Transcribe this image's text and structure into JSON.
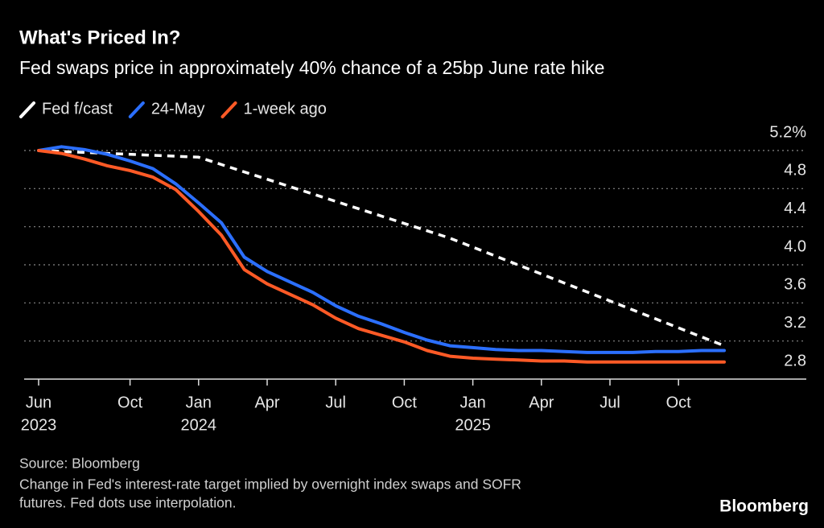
{
  "chart_data": {
    "type": "line",
    "title": "What's Priced In?",
    "subtitle": "Fed swaps price in approximately 40% chance of a 25bp June rate hike",
    "x": [
      "2023-06",
      "2023-07",
      "2023-08",
      "2023-09",
      "2023-10",
      "2023-11",
      "2023-12",
      "2024-01",
      "2024-02",
      "2024-03",
      "2024-04",
      "2024-05",
      "2024-06",
      "2024-07",
      "2024-08",
      "2024-09",
      "2024-10",
      "2024-11",
      "2024-12",
      "2025-01",
      "2025-02",
      "2025-03",
      "2025-04",
      "2025-05",
      "2025-06",
      "2025-07",
      "2025-08",
      "2025-09",
      "2025-10",
      "2025-11",
      "2025-12"
    ],
    "series": [
      {
        "name": "Fed f/cast",
        "color": "#ffffff",
        "dashed": true,
        "x": [
          "2023-06",
          "2024-01",
          "2024-12",
          "2025-12"
        ],
        "values": [
          5.2,
          5.13,
          4.28,
          3.15
        ]
      },
      {
        "name": "24-May",
        "color": "#2b6fff",
        "values": [
          5.2,
          5.24,
          5.21,
          5.16,
          5.09,
          5.01,
          4.85,
          4.65,
          4.44,
          4.08,
          3.93,
          3.82,
          3.71,
          3.57,
          3.46,
          3.38,
          3.29,
          3.21,
          3.15,
          3.13,
          3.11,
          3.1,
          3.1,
          3.09,
          3.08,
          3.08,
          3.08,
          3.09,
          3.09,
          3.1,
          3.1
        ]
      },
      {
        "name": "1-week ago",
        "color": "#ff5a26",
        "values": [
          5.2,
          5.17,
          5.11,
          5.04,
          4.99,
          4.92,
          4.79,
          4.56,
          4.31,
          3.95,
          3.8,
          3.69,
          3.58,
          3.44,
          3.33,
          3.26,
          3.19,
          3.1,
          3.04,
          3.02,
          3.01,
          3.0,
          2.99,
          2.99,
          2.98,
          2.98,
          2.98,
          2.98,
          2.98,
          2.98,
          2.98
        ]
      }
    ],
    "xlim": [
      "2023-06",
      "2025-12"
    ],
    "xticks": [
      {
        "value": "2023-06",
        "label": "Jun"
      },
      {
        "value": "2023-10",
        "label": "Oct"
      },
      {
        "value": "2024-01",
        "label": "Jan"
      },
      {
        "value": "2024-04",
        "label": "Apr"
      },
      {
        "value": "2024-07",
        "label": "Jul"
      },
      {
        "value": "2024-10",
        "label": "Oct"
      },
      {
        "value": "2025-01",
        "label": "Jan"
      },
      {
        "value": "2025-04",
        "label": "Apr"
      },
      {
        "value": "2025-07",
        "label": "Jul"
      },
      {
        "value": "2025-10",
        "label": "Oct"
      }
    ],
    "xtick_years": [
      {
        "value": "2023-06",
        "label": "2023"
      },
      {
        "value": "2024-01",
        "label": "2024"
      },
      {
        "value": "2025-01",
        "label": "2025"
      }
    ],
    "ylim": [
      2.8,
      5.2
    ],
    "yticks": [
      2.8,
      3.2,
      3.6,
      {
        "value": 4,
        "label": "4.0"
      },
      4.4,
      4.8,
      {
        "value": 5.2,
        "label": "5.2%"
      }
    ],
    "grid": true,
    "source": "Source: Bloomberg",
    "note": [
      "Change in Fed's interest-rate target implied by overnight index swaps and SOFR",
      "futures. Fed dots use interpolation."
    ],
    "logo": "Bloomberg"
  }
}
